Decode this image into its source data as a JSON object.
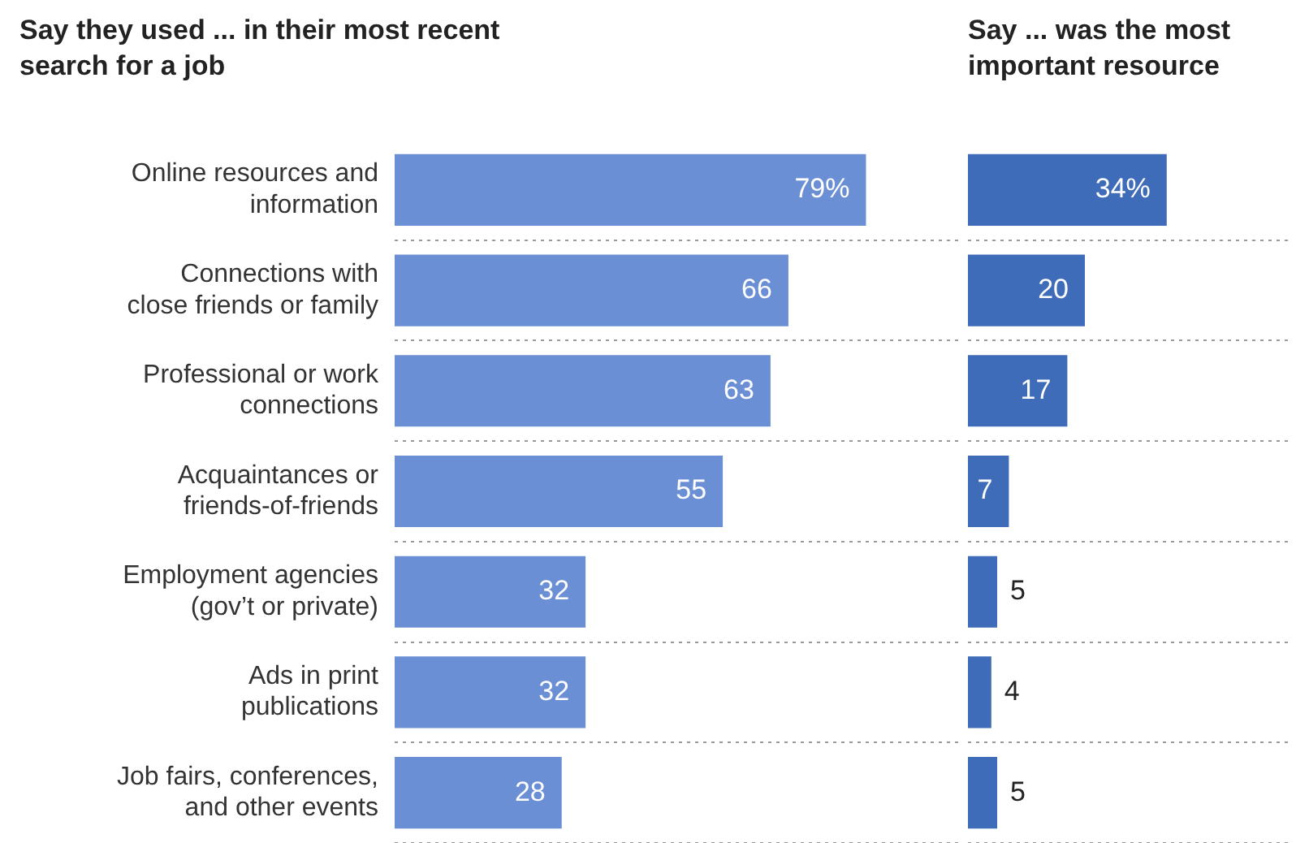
{
  "chart_data": [
    {
      "type": "bar",
      "orientation": "horizontal",
      "title": "Say they used ... in their most recent search for a job",
      "categories": [
        "Online resources and information",
        "Connections with close friends or family",
        "Professional or work connections",
        "Acquaintances or friends-of-friends",
        "Employment agencies (gov’t or private)",
        "Ads in print publications",
        "Job fairs, conferences, and other events"
      ],
      "values": [
        79,
        66,
        63,
        55,
        32,
        32,
        28
      ],
      "value_labels": [
        "79%",
        "66",
        "63",
        "55",
        "32",
        "32",
        "28"
      ],
      "color": "#6b8fd4",
      "xlim": [
        0,
        95
      ],
      "tick_labels": "y",
      "grid": "y",
      "legend": false
    },
    {
      "type": "bar",
      "orientation": "horizontal",
      "title": "Say ... was the most important resource",
      "categories": [
        null,
        null,
        null,
        null,
        null,
        null,
        null
      ],
      "values": [
        34,
        20,
        17,
        7,
        5,
        4,
        5
      ],
      "value_labels": [
        "34%",
        "20",
        "17",
        "7",
        "5",
        "4",
        "5"
      ],
      "color": "#3f6cb8",
      "xlim": [
        0,
        55
      ],
      "tick_labels": false,
      "grid": "y",
      "legend": false
    }
  ]
}
